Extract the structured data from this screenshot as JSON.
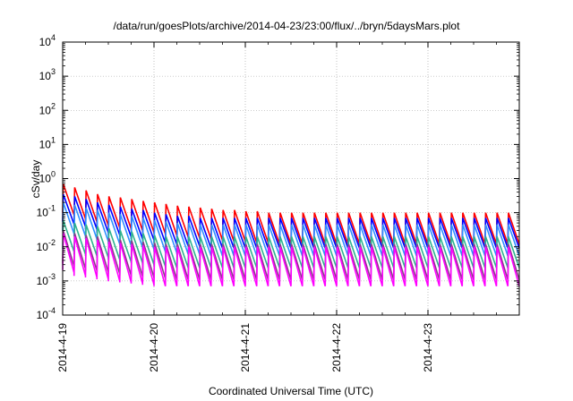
{
  "chart_data": {
    "type": "line",
    "title": "/data/run/goesPlots/archive/2014-04-23/23:00/flux/../bryn/5daysMars.plot",
    "xlabel": "Coordinated Universal Time (UTC)",
    "ylabel": "cSv/day",
    "yscale": "log",
    "ylim": [
      0.0001,
      10000
    ],
    "y_ticks": [
      {
        "base": "10",
        "exp": "-4",
        "value": 0.0001
      },
      {
        "base": "10",
        "exp": "-3",
        "value": 0.001
      },
      {
        "base": "10",
        "exp": "-2",
        "value": 0.01
      },
      {
        "base": "10",
        "exp": "-1",
        "value": 0.1
      },
      {
        "base": "10",
        "exp": "0",
        "value": 1
      },
      {
        "base": "10",
        "exp": "1",
        "value": 10
      },
      {
        "base": "10",
        "exp": "2",
        "value": 100
      },
      {
        "base": "10",
        "exp": "3",
        "value": 1000
      },
      {
        "base": "10",
        "exp": "4",
        "value": 10000
      }
    ],
    "xlim": [
      "2014-04-19 00:00",
      "2014-04-24 00:00"
    ],
    "x_ticks": [
      "2014-4-19",
      "2014-4-20",
      "2014-4-21",
      "2014-4-22",
      "2014-4-23"
    ],
    "grid": true,
    "sawtooth_period_hours": 3,
    "series": [
      {
        "color": "#ff0000",
        "peaks": [
          0.7,
          0.55,
          0.45,
          0.35,
          0.3,
          0.28,
          0.25,
          0.22,
          0.2,
          0.18,
          0.16,
          0.15,
          0.14,
          0.13,
          0.12,
          0.12,
          0.11,
          0.11,
          0.1,
          0.1,
          0.1,
          0.1,
          0.1,
          0.1,
          0.1,
          0.1,
          0.1,
          0.1,
          0.1,
          0.1,
          0.1,
          0.1,
          0.1,
          0.1,
          0.1,
          0.1,
          0.1,
          0.1,
          0.1,
          0.1
        ],
        "dip_factor": 0.12
      },
      {
        "color": "#0000ff",
        "peaks": [
          0.35,
          0.3,
          0.25,
          0.2,
          0.17,
          0.15,
          0.13,
          0.12,
          0.1,
          0.09,
          0.08,
          0.08,
          0.07,
          0.07,
          0.07,
          0.07,
          0.07,
          0.07,
          0.07,
          0.07,
          0.07,
          0.07,
          0.07,
          0.07,
          0.07,
          0.07,
          0.07,
          0.07,
          0.07,
          0.07,
          0.07,
          0.07,
          0.07,
          0.07,
          0.07,
          0.07,
          0.07,
          0.07,
          0.07,
          0.07
        ],
        "dip_factor": 0.13
      },
      {
        "color": "#2f8fff",
        "peaks": [
          0.2,
          0.17,
          0.14,
          0.12,
          0.1,
          0.09,
          0.08,
          0.07,
          0.06,
          0.055,
          0.05,
          0.05,
          0.045,
          0.045,
          0.045,
          0.045,
          0.045,
          0.045,
          0.045,
          0.045,
          0.045,
          0.045,
          0.045,
          0.045,
          0.045,
          0.045,
          0.045,
          0.045,
          0.045,
          0.045,
          0.045,
          0.045,
          0.045,
          0.045,
          0.045,
          0.045,
          0.045,
          0.045,
          0.045,
          0.045
        ],
        "dip_factor": 0.12
      },
      {
        "color": "#2fb38f",
        "peaks": [
          0.06,
          0.05,
          0.045,
          0.04,
          0.035,
          0.03,
          0.028,
          0.025,
          0.022,
          0.02,
          0.02,
          0.02,
          0.02,
          0.02,
          0.02,
          0.02,
          0.02,
          0.02,
          0.02,
          0.02,
          0.02,
          0.02,
          0.02,
          0.02,
          0.02,
          0.02,
          0.02,
          0.02,
          0.02,
          0.02,
          0.02,
          0.02,
          0.02,
          0.02,
          0.02,
          0.02,
          0.02,
          0.02,
          0.02,
          0.02
        ],
        "dip_factor": 0.12
      },
      {
        "color": "#8b3a8b",
        "peaks": [
          0.03,
          0.025,
          0.022,
          0.02,
          0.018,
          0.016,
          0.015,
          0.014,
          0.013,
          0.012,
          0.012,
          0.012,
          0.012,
          0.012,
          0.012,
          0.012,
          0.012,
          0.012,
          0.012,
          0.012,
          0.012,
          0.012,
          0.012,
          0.012,
          0.012,
          0.012,
          0.012,
          0.012,
          0.012,
          0.012,
          0.012,
          0.012,
          0.012,
          0.012,
          0.012,
          0.012,
          0.012,
          0.012,
          0.012,
          0.012
        ],
        "dip_factor": 0.09
      },
      {
        "color": "#ff00ff",
        "peaks": [
          0.025,
          0.02,
          0.018,
          0.016,
          0.014,
          0.013,
          0.012,
          0.011,
          0.01,
          0.01,
          0.01,
          0.01,
          0.01,
          0.01,
          0.01,
          0.01,
          0.01,
          0.01,
          0.01,
          0.01,
          0.01,
          0.01,
          0.01,
          0.01,
          0.01,
          0.01,
          0.01,
          0.01,
          0.01,
          0.01,
          0.01,
          0.01,
          0.01,
          0.01,
          0.01,
          0.01,
          0.01,
          0.01,
          0.01,
          0.01
        ],
        "dip_factor": 0.07
      }
    ]
  }
}
